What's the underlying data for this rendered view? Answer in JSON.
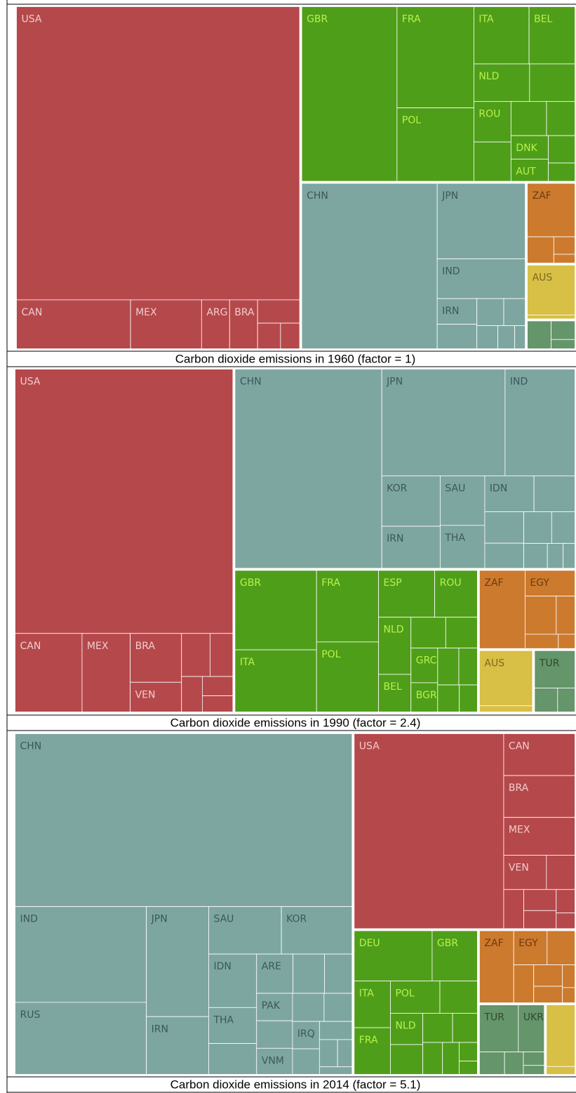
{
  "chart_data": [
    {
      "type": "treemap",
      "title": "Carbon dioxide emissions in 1960 (factor = 1)",
      "groups": [
        {
          "color": "#b5484b",
          "label_color": "#f2cccc",
          "items": [
            {
              "name": "USA",
              "value": 169.7
            },
            {
              "name": "CAN",
              "value": 11.4
            },
            {
              "name": "MEX",
              "value": 7.1
            },
            {
              "name": "ARG",
              "value": 2.8
            },
            {
              "name": "BRA",
              "value": 2.8
            },
            {
              "name": null,
              "value": 2
            },
            {
              "name": null,
              "value": 1.2
            },
            {
              "name": null,
              "value": 1
            }
          ]
        },
        {
          "color": "#4f9e1a",
          "label_color": "#b6f24a",
          "items": [
            {
              "name": "GBR",
              "value": 34.2
            },
            {
              "name": "FRA",
              "value": 16
            },
            {
              "name": "POL",
              "value": 11.6
            },
            {
              "name": "ITA",
              "value": 6.5
            },
            {
              "name": "BEL",
              "value": 5.4
            },
            {
              "name": "NLD",
              "value": 4.3
            },
            {
              "name": null,
              "value": 3.5
            },
            {
              "name": "ROU",
              "value": 3.1
            },
            {
              "name": null,
              "value": 3
            },
            {
              "name": null,
              "value": 2.5
            },
            {
              "name": null,
              "value": 2
            },
            {
              "name": "DNK",
              "value": 1.8
            },
            {
              "name": "AUT",
              "value": 1.7
            },
            {
              "name": null,
              "value": 1.5
            },
            {
              "name": null,
              "value": 1
            }
          ]
        },
        {
          "color": "#7ea6a1",
          "label_color": "#3b5856",
          "items": [
            {
              "name": "CHN",
              "value": 46.2
            },
            {
              "name": "JPN",
              "value": 13.7
            },
            {
              "name": "IND",
              "value": 7.2
            },
            {
              "name": "IRN",
              "value": 2.1
            },
            {
              "name": null,
              "value": 2
            },
            {
              "name": null,
              "value": 1.5
            },
            {
              "name": null,
              "value": 1.2
            },
            {
              "name": null,
              "value": 1
            },
            {
              "name": null,
              "value": 0.8
            },
            {
              "name": null,
              "value": 0.5
            }
          ]
        },
        {
          "color": "#cc7a2e",
          "label_color": "#6b3a10",
          "items": [
            {
              "name": "ZAF",
              "value": 5.5
            },
            {
              "name": null,
              "value": 1.5
            },
            {
              "name": null,
              "value": 0.8
            },
            {
              "name": null,
              "value": 0.4
            }
          ]
        },
        {
          "color": "#d8bf45",
          "label_color": "#7a6a20",
          "items": [
            {
              "name": "AUS",
              "value": 5.2
            },
            {
              "name": null,
              "value": 0.4
            }
          ]
        },
        {
          "color": "#65956a",
          "label_color": "#2e4a30",
          "items": [
            {
              "name": null,
              "value": 1.5
            },
            {
              "name": null,
              "value": 1
            },
            {
              "name": null,
              "value": 0.5
            }
          ]
        }
      ]
    },
    {
      "type": "treemap",
      "title": "Carbon dioxide emissions in 1990 (factor = 2.4)",
      "groups": [
        {
          "color": "#b5484b",
          "label_color": "#f2cccc",
          "items": [
            {
              "name": "USA",
              "value": 117.2
            },
            {
              "name": "CAN",
              "value": 10.7
            },
            {
              "name": "MEX",
              "value": 7.7
            },
            {
              "name": "BRA",
              "value": 5.1
            },
            {
              "name": "VEN",
              "value": 3.1
            },
            {
              "name": null,
              "value": 2.5
            },
            {
              "name": null,
              "value": 2
            },
            {
              "name": null,
              "value": 1.5
            },
            {
              "name": null,
              "value": 1.2
            },
            {
              "name": null,
              "value": 1
            }
          ]
        },
        {
          "color": "#7ea6a1",
          "label_color": "#3b5856",
          "items": [
            {
              "name": "CHN",
              "value": 59.6
            },
            {
              "name": "JPN",
              "value": 26.8
            },
            {
              "name": "IND",
              "value": 15.2
            },
            {
              "name": "KOR",
              "value": 6
            },
            {
              "name": "IRN",
              "value": 5
            },
            {
              "name": "SAU",
              "value": 4.5
            },
            {
              "name": "THA",
              "value": 3.9
            },
            {
              "name": "IDN",
              "value": 3.6
            },
            {
              "name": null,
              "value": 3
            },
            {
              "name": null,
              "value": 2.5
            },
            {
              "name": null,
              "value": 2
            },
            {
              "name": null,
              "value": 1.8
            },
            {
              "name": null,
              "value": 1.5
            },
            {
              "name": null,
              "value": 1.2
            },
            {
              "name": null,
              "value": 0.8
            },
            {
              "name": null,
              "value": 0.6
            }
          ]
        },
        {
          "color": "#4f9e1a",
          "label_color": "#b6f24a",
          "items": [
            {
              "name": "GBR",
              "value": 13.3
            },
            {
              "name": "ITA",
              "value": 10.4
            },
            {
              "name": "FRA",
              "value": 9.1
            },
            {
              "name": "POL",
              "value": 8.9
            },
            {
              "name": "ESP",
              "value": 5.4
            },
            {
              "name": "ROU",
              "value": 4.1
            },
            {
              "name": "NLD",
              "value": 3.8
            },
            {
              "name": "BEL",
              "value": 2.5
            },
            {
              "name": null,
              "value": 2.2
            },
            {
              "name": null,
              "value": 2
            },
            {
              "name": "GRC",
              "value": 1.9
            },
            {
              "name": "BGR",
              "value": 1.6
            },
            {
              "name": null,
              "value": 1.6
            },
            {
              "name": null,
              "value": 1.4
            },
            {
              "name": null,
              "value": 1.2
            },
            {
              "name": null,
              "value": 1
            }
          ]
        },
        {
          "color": "#cc7a2e",
          "label_color": "#6b3a10",
          "items": [
            {
              "name": "ZAF",
              "value": 7.5
            },
            {
              "name": "EGY",
              "value": 2.7
            },
            {
              "name": null,
              "value": 2.5
            },
            {
              "name": null,
              "value": 1.5
            },
            {
              "name": null,
              "value": 1
            },
            {
              "name": null,
              "value": 0.5
            }
          ]
        },
        {
          "color": "#d8bf45",
          "label_color": "#7a6a20",
          "items": [
            {
              "name": "AUS",
              "value": 6.3
            },
            {
              "name": null,
              "value": 0.7
            }
          ]
        },
        {
          "color": "#65956a",
          "label_color": "#2e4a30",
          "items": [
            {
              "name": "TUR",
              "value": 3.3
            },
            {
              "name": null,
              "value": 1.2
            },
            {
              "name": null,
              "value": 0.9
            }
          ]
        }
      ]
    },
    {
      "type": "treemap",
      "title": "Carbon dioxide emissions in 2014 (factor = 5.1)",
      "groups": [
        {
          "color": "#7ea6a1",
          "label_color": "#3b5856",
          "items": [
            {
              "name": "CHN",
              "value": 118.2
            },
            {
              "name": "IND",
              "value": 25.5
            },
            {
              "name": "RUS",
              "value": 19.2
            },
            {
              "name": "JPN",
              "value": 13.9
            },
            {
              "name": "IRN",
              "value": 7.3
            },
            {
              "name": "SAU",
              "value": 7
            },
            {
              "name": "KOR",
              "value": 6.8
            },
            {
              "name": "IDN",
              "value": 5.2
            },
            {
              "name": "THA",
              "value": 3.5
            },
            {
              "name": null,
              "value": 3
            },
            {
              "name": "ARE",
              "value": 2.9
            },
            {
              "name": null,
              "value": 2.5
            },
            {
              "name": null,
              "value": 2.2
            },
            {
              "name": "PAK",
              "value": 2
            },
            {
              "name": null,
              "value": 2
            },
            {
              "name": "VNM",
              "value": 1.9
            },
            {
              "name": null,
              "value": 1.8
            },
            {
              "name": null,
              "value": 1.6
            },
            {
              "name": "IRQ",
              "value": 1.5
            },
            {
              "name": null,
              "value": 1.4
            },
            {
              "name": null,
              "value": 1.2
            },
            {
              "name": null,
              "value": 1
            },
            {
              "name": null,
              "value": 0.8
            },
            {
              "name": null,
              "value": 0.5
            }
          ]
        },
        {
          "color": "#b5484b",
          "label_color": "#f2cccc",
          "items": [
            {
              "name": "USA",
              "value": 59.6
            },
            {
              "name": "CAN",
              "value": 6.1
            },
            {
              "name": "BRA",
              "value": 6.1
            },
            {
              "name": "MEX",
              "value": 5.5
            },
            {
              "name": "VEN",
              "value": 3
            },
            {
              "name": null,
              "value": 2
            },
            {
              "name": null,
              "value": 1.6
            },
            {
              "name": null,
              "value": 1.4
            },
            {
              "name": null,
              "value": 1.2
            },
            {
              "name": null,
              "value": 0.9
            },
            {
              "name": null,
              "value": 0.6
            }
          ]
        },
        {
          "color": "#4f9e1a",
          "label_color": "#b6f24a",
          "items": [
            {
              "name": "DEU",
              "value": 8.1
            },
            {
              "name": "GBR",
              "value": 4.7
            },
            {
              "name": "ITA",
              "value": 3.5
            },
            {
              "name": "FRA",
              "value": 3.5
            },
            {
              "name": "POL",
              "value": 3.3
            },
            {
              "name": null,
              "value": 2.5
            },
            {
              "name": "NLD",
              "value": 2.1
            },
            {
              "name": null,
              "value": 2
            },
            {
              "name": null,
              "value": 1.8
            },
            {
              "name": null,
              "value": 1.5
            },
            {
              "name": null,
              "value": 1.3
            },
            {
              "name": null,
              "value": 1.1
            },
            {
              "name": null,
              "value": 0.7
            },
            {
              "name": null,
              "value": 0.5
            }
          ]
        },
        {
          "color": "#cc7a2e",
          "label_color": "#6b3a10",
          "items": [
            {
              "name": "ZAF",
              "value": 5.2
            },
            {
              "name": "EGY",
              "value": 2.4
            },
            {
              "name": null,
              "value": 2
            },
            {
              "name": null,
              "value": 1.6
            },
            {
              "name": null,
              "value": 1.3
            },
            {
              "name": null,
              "value": 1
            },
            {
              "name": null,
              "value": 0.6
            },
            {
              "name": null,
              "value": 0.4
            }
          ]
        },
        {
          "color": "#65956a",
          "label_color": "#2e4a30",
          "items": [
            {
              "name": "TUR",
              "value": 3.9
            },
            {
              "name": "UKR",
              "value": 2.6
            },
            {
              "name": null,
              "value": 1.2
            },
            {
              "name": null,
              "value": 0.9
            },
            {
              "name": null,
              "value": 0.6
            },
            {
              "name": null,
              "value": 0.4
            }
          ]
        },
        {
          "color": "#d8bf45",
          "label_color": "#7a6a20",
          "items": [
            {
              "name": null,
              "value": 3.9
            },
            {
              "name": null,
              "value": 0.5
            }
          ]
        }
      ]
    }
  ]
}
